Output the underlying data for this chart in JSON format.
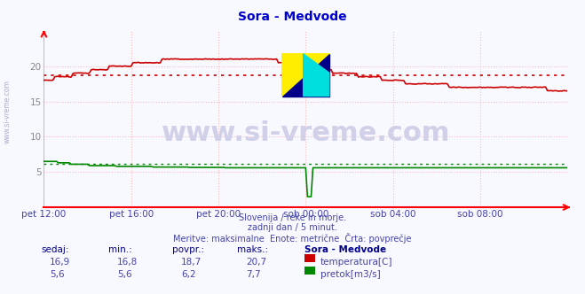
{
  "title": "Sora - Medvode",
  "title_color": "#0000cc",
  "bg_color": "#f8f8ff",
  "plot_bg_color": "#f8f8ff",
  "grid_color": "#ffbbbb",
  "grid_linestyle": ":",
  "x_spine_color": "#ff0000",
  "y_spine_color": "#aaaaaa",
  "watermark_text": "www.si-vreme.com",
  "watermark_color": "#c8c8e8",
  "subtitle_lines": [
    "Slovenija / reke in morje.",
    "zadnji dan / 5 minut.",
    "Meritve: maksimalne  Enote: metrične  Črta: povprečje"
  ],
  "subtitle_color": "#4444aa",
  "xlim": [
    0,
    288
  ],
  "ylim": [
    0,
    25
  ],
  "ytick_vals": [
    5,
    10,
    15,
    20
  ],
  "xtick_labels": [
    "pet 12:00",
    "pet 16:00",
    "pet 20:00",
    "sob 00:00",
    "sob 04:00",
    "sob 08:00"
  ],
  "xtick_positions": [
    0,
    48,
    96,
    144,
    192,
    240
  ],
  "temp_color": "#cc0000",
  "flow_color": "#008800",
  "height_color": "#0000cc",
  "temp_avg": 18.7,
  "flow_avg": 6.2,
  "legend_headers": [
    "sedaj:",
    "min.:",
    "povpr.:",
    "maks.:",
    "Sora - Medvode"
  ],
  "legend_temp": [
    "16,9",
    "16,8",
    "18,7",
    "20,7",
    "temperatura[C]"
  ],
  "legend_flow": [
    "5,6",
    "5,6",
    "6,2",
    "7,7",
    "pretok[m3/s]"
  ],
  "legend_color_temp": "#cc0000",
  "legend_color_flow": "#008800",
  "legend_text_color": "#4444aa",
  "legend_header_color": "#000088"
}
